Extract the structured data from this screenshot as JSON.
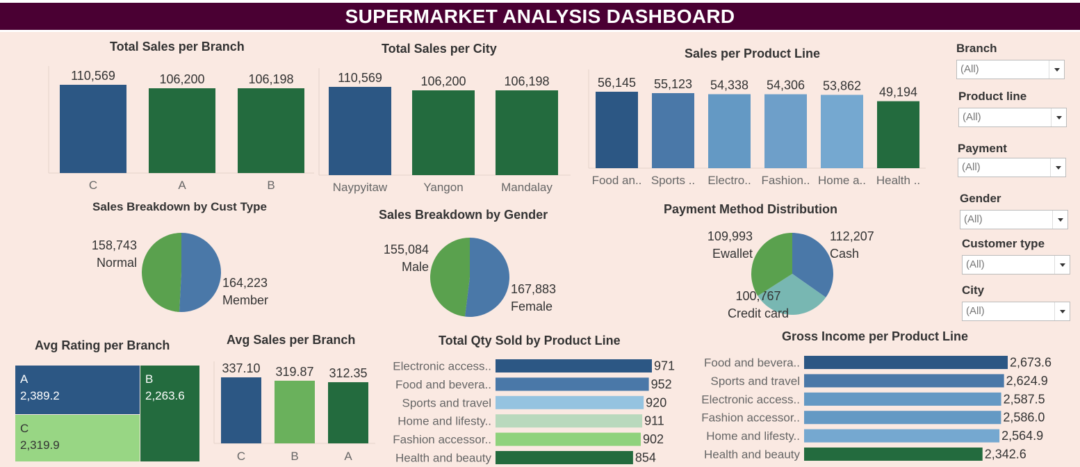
{
  "header": {
    "title": "SUPERMARKET ANALYSIS DASHBOARD"
  },
  "colors": {
    "blue_dark": "#2c5784",
    "blue_mid": "#4a78a8",
    "blue_light": "#6499c4",
    "blue_pale": "#75a8d0",
    "green_dark": "#236b3e",
    "green_mid": "#5aa14e",
    "green_light": "#98d684",
    "teal": "#78b7b2",
    "banner": "#4a0033",
    "background": "#fae9e2"
  },
  "filters": [
    {
      "label": "Branch",
      "value": "(All)"
    },
    {
      "label": "Product line",
      "value": "(All)"
    },
    {
      "label": "Payment",
      "value": "(All)"
    },
    {
      "label": "Gender",
      "value": "(All)"
    },
    {
      "label": "Customer type",
      "value": "(All)"
    },
    {
      "label": "City",
      "value": "(All)"
    }
  ],
  "chart_data": [
    {
      "id": "branch",
      "type": "bar",
      "title": "Total Sales per Branch",
      "categories": [
        "C",
        "A",
        "B"
      ],
      "values": [
        110569,
        106200,
        106198
      ],
      "value_labels": [
        "110,569",
        "106,200",
        "106,198"
      ],
      "colors": [
        "#2c5784",
        "#236b3e",
        "#236b3e"
      ]
    },
    {
      "id": "city",
      "type": "bar",
      "title": "Total Sales per City",
      "categories": [
        "Naypyitaw",
        "Yangon",
        "Mandalay"
      ],
      "values": [
        110569,
        106200,
        106198
      ],
      "value_labels": [
        "110,569",
        "106,200",
        "106,198"
      ],
      "colors": [
        "#2c5784",
        "#236b3e",
        "#236b3e"
      ]
    },
    {
      "id": "product",
      "type": "bar",
      "title": "Sales per Product Line",
      "categories": [
        "Food an..",
        "Sports ..",
        "Electro..",
        "Fashion..",
        "Home a..",
        "Health .."
      ],
      "values": [
        56145,
        55123,
        54338,
        54306,
        53862,
        49194
      ],
      "value_labels": [
        "56,145",
        "55,123",
        "54,338",
        "54,306",
        "53,862",
        "49,194"
      ],
      "colors": [
        "#2c5784",
        "#4a78a8",
        "#6499c4",
        "#6e9fc9",
        "#75a8d0",
        "#236b3e"
      ]
    },
    {
      "id": "custtype",
      "type": "pie",
      "title": "Sales Breakdown by Cust Type",
      "slices": [
        {
          "name": "Member",
          "value": 164223,
          "label": "164,223",
          "color": "#4a78a8"
        },
        {
          "name": "Normal",
          "value": 158743,
          "label": "158,743",
          "color": "#5aa14e"
        }
      ]
    },
    {
      "id": "gender",
      "type": "pie",
      "title": "Sales Breakdown by Gender",
      "slices": [
        {
          "name": "Female",
          "value": 167883,
          "label": "167,883",
          "color": "#4a78a8"
        },
        {
          "name": "Male",
          "value": 155084,
          "label": "155,084",
          "color": "#5aa14e"
        }
      ]
    },
    {
      "id": "payment",
      "type": "pie",
      "title": "Payment Method Distribution",
      "slices": [
        {
          "name": "Cash",
          "value": 112207,
          "label": "112,207",
          "color": "#4a78a8"
        },
        {
          "name": "Credit card",
          "value": 100767,
          "label": "100,767",
          "color": "#78b7b2"
        },
        {
          "name": "Ewallet",
          "value": 109993,
          "label": "109,993",
          "color": "#5aa14e"
        }
      ]
    },
    {
      "id": "rating",
      "type": "treemap",
      "title": "Avg Rating per Branch",
      "items": [
        {
          "name": "A",
          "value": 2389.2,
          "label": "2,389.2",
          "color": "#2c5784"
        },
        {
          "name": "C",
          "value": 2319.9,
          "label": "2,319.9",
          "color": "#98d684"
        },
        {
          "name": "B",
          "value": 2263.6,
          "label": "2,263.6",
          "color": "#236b3e"
        }
      ]
    },
    {
      "id": "avgsales",
      "type": "bar",
      "title": "Avg Sales per Branch",
      "categories": [
        "C",
        "B",
        "A"
      ],
      "values": [
        337.1,
        319.87,
        312.35
      ],
      "value_labels": [
        "337.10",
        "319.87",
        "312.35"
      ],
      "colors": [
        "#2c5784",
        "#6ab15c",
        "#236b3e"
      ]
    },
    {
      "id": "qty",
      "type": "hbar",
      "title": "Total Qty Sold by Product Line",
      "categories": [
        "Electronic access..",
        "Food and bevera..",
        "Sports and travel",
        "Home and lifesty..",
        "Fashion accessor..",
        "Health and beauty"
      ],
      "values": [
        971,
        952,
        920,
        911,
        902,
        854
      ],
      "value_labels": [
        "971",
        "952",
        "920",
        "911",
        "902",
        "854"
      ],
      "colors": [
        "#2c5784",
        "#4a78a8",
        "#95c3e0",
        "#b9d9bd",
        "#8fd27c",
        "#236b3e"
      ]
    },
    {
      "id": "income",
      "type": "hbar",
      "title": "Gross Income per Product Line",
      "categories": [
        "Food and bevera..",
        "Sports and travel",
        "Electronic access..",
        "Fashion accessor..",
        "Home and lifesty..",
        "Health and beauty"
      ],
      "values": [
        2673.6,
        2624.9,
        2587.5,
        2586.0,
        2564.9,
        2342.6
      ],
      "value_labels": [
        "2,673.6",
        "2,624.9",
        "2,587.5",
        "2,586.0",
        "2,564.9",
        "2,342.6"
      ],
      "colors": [
        "#2c5784",
        "#4a78a8",
        "#6499c4",
        "#6499c4",
        "#75a8d0",
        "#236b3e"
      ]
    }
  ]
}
